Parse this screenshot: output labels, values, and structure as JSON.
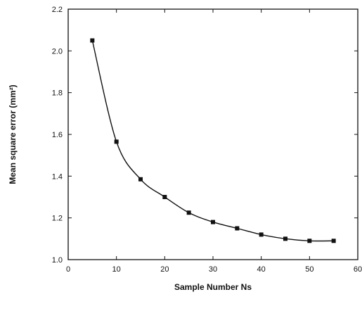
{
  "chart_data": {
    "type": "line",
    "xlabel": "Sample Number  Ns",
    "ylabel": "Mean  square  error  (mm²)",
    "xlim": [
      0,
      60
    ],
    "ylim": [
      1.0,
      2.2
    ],
    "xticks": [
      0,
      10,
      20,
      30,
      40,
      50,
      60
    ],
    "yticks": [
      1.0,
      1.2,
      1.4,
      1.6,
      1.8,
      2.0,
      2.2
    ],
    "xtick_labels": [
      "0",
      "10",
      "20",
      "30",
      "40",
      "50",
      "60"
    ],
    "ytick_labels": [
      "1.0",
      "1.2",
      "1.4",
      "1.6",
      "1.8",
      "2.0",
      "2.2"
    ],
    "grid": false,
    "marker": "square",
    "series": [
      {
        "x": [
          5,
          10,
          15,
          20,
          25,
          30,
          35,
          40,
          45,
          50,
          55
        ],
        "y": [
          2.05,
          1.565,
          1.385,
          1.3,
          1.225,
          1.18,
          1.15,
          1.12,
          1.1,
          1.09,
          1.09
        ]
      }
    ]
  }
}
